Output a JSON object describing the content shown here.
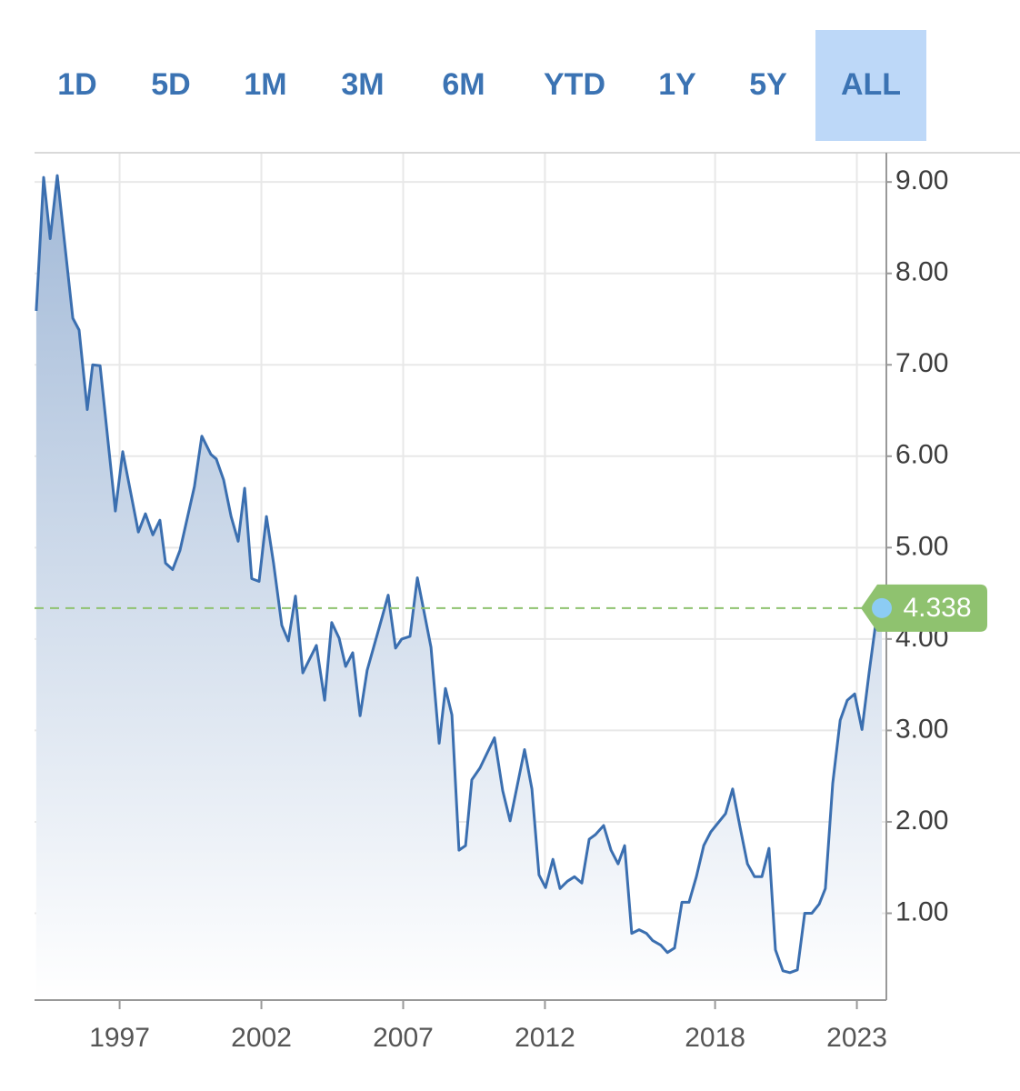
{
  "range_buttons": [
    "1D",
    "5D",
    "1M",
    "3M",
    "6M",
    "YTD",
    "1Y",
    "5Y",
    "ALL"
  ],
  "selected_range_index": 8,
  "chart_data": {
    "type": "line",
    "x": [
      1994.06,
      1994.32,
      1994.55,
      1994.8,
      1995.35,
      1995.57,
      1995.86,
      1996.05,
      1996.31,
      1996.85,
      1997.11,
      1997.66,
      1997.91,
      1998.17,
      1998.42,
      1998.62,
      1998.87,
      1999.13,
      1999.64,
      1999.9,
      2000.22,
      2000.41,
      2000.67,
      2000.93,
      2001.18,
      2001.41,
      2001.66,
      2001.92,
      2002.18,
      2002.43,
      2002.72,
      2002.95,
      2003.2,
      2003.46,
      2003.94,
      2004.23,
      2004.48,
      2004.74,
      2004.97,
      2005.22,
      2005.48,
      2005.73,
      2006.25,
      2006.47,
      2006.73,
      2006.95,
      2007.24,
      2007.5,
      2007.98,
      2008.27,
      2008.49,
      2008.72,
      2008.97,
      2009.2,
      2009.42,
      2009.71,
      2010.22,
      2010.51,
      2010.77,
      2011.28,
      2011.54,
      2011.79,
      2012.02,
      2012.28,
      2012.53,
      2012.79,
      2013.04,
      2013.3,
      2013.56,
      2013.78,
      2014.07,
      2014.33,
      2014.58,
      2014.81,
      2015.06,
      2015.32,
      2015.58,
      2015.8,
      2016.09,
      2016.32,
      2016.57,
      2016.83,
      2017.08,
      2017.34,
      2017.6,
      2017.85,
      2018.37,
      2018.62,
      2018.88,
      2019.14,
      2019.39,
      2019.65,
      2019.9,
      2020.13,
      2020.39,
      2020.64,
      2020.9,
      2021.16,
      2021.41,
      2021.67,
      2021.89,
      2022.15,
      2022.41,
      2022.66,
      2022.92,
      2023.18,
      2023.43,
      2023.69,
      2023.88
    ],
    "values": [
      7.59,
      9.05,
      8.38,
      9.07,
      7.51,
      7.38,
      6.51,
      7.0,
      6.99,
      5.4,
      6.05,
      5.17,
      5.37,
      5.14,
      5.3,
      4.83,
      4.76,
      4.97,
      5.67,
      6.22,
      6.02,
      5.97,
      5.74,
      5.34,
      5.07,
      5.65,
      4.66,
      4.63,
      5.34,
      4.83,
      4.15,
      3.98,
      4.47,
      3.63,
      3.93,
      3.33,
      4.18,
      4.01,
      3.7,
      3.85,
      3.16,
      3.66,
      4.23,
      4.48,
      3.9,
      4.0,
      4.03,
      4.67,
      3.91,
      2.86,
      3.46,
      3.17,
      1.69,
      1.74,
      2.46,
      2.59,
      2.92,
      2.34,
      2.01,
      2.79,
      2.36,
      1.42,
      1.28,
      1.59,
      1.27,
      1.35,
      1.4,
      1.33,
      1.81,
      1.86,
      1.96,
      1.69,
      1.54,
      1.74,
      0.78,
      0.82,
      0.78,
      0.7,
      0.65,
      0.57,
      0.62,
      1.12,
      1.12,
      1.4,
      1.74,
      1.89,
      2.09,
      2.36,
      1.94,
      1.54,
      1.4,
      1.4,
      1.71,
      0.6,
      0.37,
      0.35,
      0.38,
      1.0,
      1.0,
      1.1,
      1.27,
      2.42,
      3.11,
      3.33,
      3.4,
      3.01,
      3.63,
      4.23,
      4.338
    ],
    "color": "#3b6fb0",
    "area_gradient": [
      "#a3bad8",
      "#ffffff"
    ],
    "last_value_color": "#8fc26f",
    "marker_color": "#8cccf4",
    "xlim": [
      1994,
      2024.04
    ],
    "ylim": [
      0.05,
      9.32
    ],
    "xticks": [
      1997,
      2002,
      2007,
      2012,
      2018,
      2023
    ],
    "yticks": [
      {
        "value": 1,
        "label": "1.00"
      },
      {
        "value": 2,
        "label": "2.00"
      },
      {
        "value": 3,
        "label": "3.00"
      },
      {
        "value": 4,
        "label": "4.00"
      },
      {
        "value": 5,
        "label": "5.00"
      },
      {
        "value": 6,
        "label": "6.00"
      },
      {
        "value": 7,
        "label": "7.00"
      },
      {
        "value": 8,
        "label": "8.00"
      },
      {
        "value": 9,
        "label": "9.00"
      }
    ],
    "grid": true
  }
}
